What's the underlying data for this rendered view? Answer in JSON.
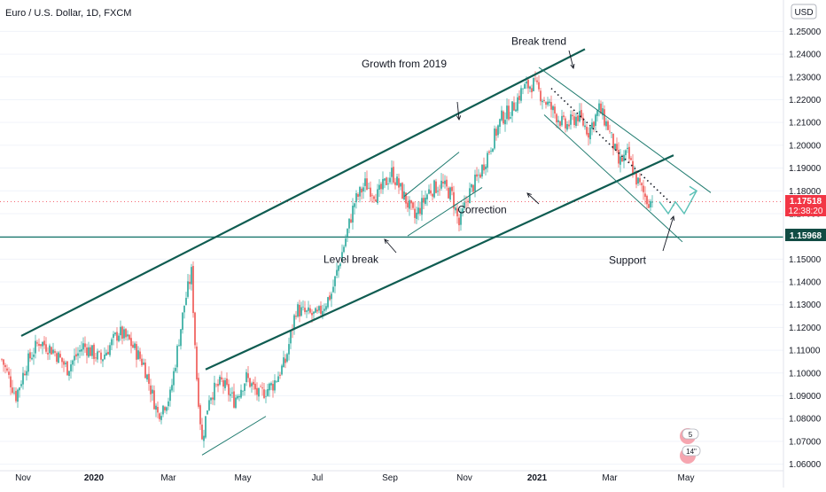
{
  "chart_data": {
    "type": "candlestick",
    "title": "Euro / U.S. Dollar, 1D, FXCM",
    "currency": "USD",
    "ylim": [
      1.0575,
      1.2595
    ],
    "y_ticks": [
      "1.06000",
      "1.07000",
      "1.08000",
      "1.09000",
      "1.10000",
      "1.11000",
      "1.12000",
      "1.13000",
      "1.14000",
      "1.15000",
      "1.16000",
      "1.17000",
      "1.18000",
      "1.19000",
      "1.20000",
      "1.21000",
      "1.22000",
      "1.23000",
      "1.24000",
      "1.25000"
    ],
    "x_ticks": [
      {
        "label": "Nov",
        "bar": 12
      },
      {
        "label": "2020",
        "bar": 52
      },
      {
        "label": "Mar",
        "bar": 94
      },
      {
        "label": "May",
        "bar": 136
      },
      {
        "label": "Jul",
        "bar": 178
      },
      {
        "label": "Sep",
        "bar": 219
      },
      {
        "label": "Nov",
        "bar": 261
      },
      {
        "label": "2021",
        "bar": 302
      },
      {
        "label": "Mar",
        "bar": 343
      },
      {
        "label": "May",
        "bar": 386
      }
    ],
    "anchors": [
      {
        "bar": 0,
        "price": 1.106
      },
      {
        "bar": 5,
        "price": 1.096
      },
      {
        "bar": 8,
        "price": 1.09
      },
      {
        "bar": 14,
        "price": 1.104
      },
      {
        "bar": 21,
        "price": 1.114
      },
      {
        "bar": 29,
        "price": 1.11
      },
      {
        "bar": 37,
        "price": 1.102
      },
      {
        "bar": 46,
        "price": 1.112
      },
      {
        "bar": 56,
        "price": 1.106
      },
      {
        "bar": 66,
        "price": 1.118
      },
      {
        "bar": 72,
        "price": 1.114
      },
      {
        "bar": 80,
        "price": 1.104
      },
      {
        "bar": 88,
        "price": 1.082
      },
      {
        "bar": 95,
        "price": 1.09
      },
      {
        "bar": 103,
        "price": 1.13
      },
      {
        "bar": 107,
        "price": 1.144
      },
      {
        "bar": 110,
        "price": 1.098
      },
      {
        "bar": 113,
        "price": 1.07
      },
      {
        "bar": 117,
        "price": 1.09
      },
      {
        "bar": 124,
        "price": 1.096
      },
      {
        "bar": 131,
        "price": 1.088
      },
      {
        "bar": 138,
        "price": 1.098
      },
      {
        "bar": 145,
        "price": 1.09
      },
      {
        "bar": 153,
        "price": 1.095
      },
      {
        "bar": 160,
        "price": 1.105
      },
      {
        "bar": 166,
        "price": 1.128
      },
      {
        "bar": 172,
        "price": 1.126
      },
      {
        "bar": 178,
        "price": 1.125
      },
      {
        "bar": 186,
        "price": 1.135
      },
      {
        "bar": 193,
        "price": 1.156
      },
      {
        "bar": 199,
        "price": 1.175
      },
      {
        "bar": 205,
        "price": 1.183
      },
      {
        "bar": 212,
        "price": 1.178
      },
      {
        "bar": 220,
        "price": 1.188
      },
      {
        "bar": 226,
        "price": 1.179
      },
      {
        "bar": 233,
        "price": 1.168
      },
      {
        "bar": 241,
        "price": 1.18
      },
      {
        "bar": 248,
        "price": 1.183
      },
      {
        "bar": 254,
        "price": 1.178
      },
      {
        "bar": 258,
        "price": 1.165
      },
      {
        "bar": 263,
        "price": 1.178
      },
      {
        "bar": 270,
        "price": 1.188
      },
      {
        "bar": 276,
        "price": 1.2
      },
      {
        "bar": 282,
        "price": 1.212
      },
      {
        "bar": 288,
        "price": 1.216
      },
      {
        "bar": 294,
        "price": 1.225
      },
      {
        "bar": 300,
        "price": 1.227
      },
      {
        "bar": 306,
        "price": 1.22
      },
      {
        "bar": 312,
        "price": 1.214
      },
      {
        "bar": 318,
        "price": 1.208
      },
      {
        "bar": 325,
        "price": 1.213
      },
      {
        "bar": 331,
        "price": 1.206
      },
      {
        "bar": 337,
        "price": 1.216
      },
      {
        "bar": 342,
        "price": 1.208
      },
      {
        "bar": 348,
        "price": 1.192
      },
      {
        "bar": 353,
        "price": 1.196
      },
      {
        "bar": 358,
        "price": 1.185
      },
      {
        "bar": 364,
        "price": 1.176
      },
      {
        "bar": 367,
        "price": 1.1752
      }
    ],
    "current_price": "1.17518",
    "countdown": "12:38:20",
    "level_price_label": "1.15968",
    "level_price": 1.15968,
    "annotations": [
      {
        "text": "Growth from 2019",
        "bar": 227,
        "price": 1.2342
      },
      {
        "text": "Break trend",
        "bar": 303,
        "price": 1.2442
      },
      {
        "text": "Correction",
        "bar": 271,
        "price": 1.1701
      },
      {
        "text": "Level break",
        "bar": 197,
        "price": 1.1484
      },
      {
        "text": "Support",
        "bar": 353,
        "price": 1.148
      }
    ],
    "trendlines": [
      {
        "name": "upper-channel-line",
        "p1": {
          "bar": 11,
          "price": 1.1163
        },
        "p2": {
          "bar": 329,
          "price": 1.2422
        }
      },
      {
        "name": "lower-channel-line",
        "p1": {
          "bar": 115,
          "price": 1.1016
        },
        "p2": {
          "bar": 379,
          "price": 1.1956
        }
      },
      {
        "name": "wedge-support-line",
        "p1": {
          "bar": 113,
          "price": 1.064
        },
        "p2": {
          "bar": 149,
          "price": 1.081
        }
      },
      {
        "name": "correction-upper-line",
        "p1": {
          "bar": 227,
          "price": 1.1775
        },
        "p2": {
          "bar": 258,
          "price": 1.197
        }
      },
      {
        "name": "correction-lower-line",
        "p1": {
          "bar": 229,
          "price": 1.1602
        },
        "p2": {
          "bar": 271,
          "price": 1.1815
        }
      },
      {
        "name": "descending-channel-upper",
        "p1": {
          "bar": 303,
          "price": 1.2342
        },
        "p2": {
          "bar": 400,
          "price": 1.1792
        }
      },
      {
        "name": "descending-channel-lower",
        "p1": {
          "bar": 306,
          "price": 1.2134
        },
        "p2": {
          "bar": 384,
          "price": 1.1576
        }
      },
      {
        "name": "dotted-trend-line",
        "p1": {
          "bar": 310,
          "price": 1.225
        },
        "p2": {
          "bar": 380,
          "price": 1.1728
        }
      }
    ],
    "projection": [
      {
        "bar": 371,
        "price": 1.1752
      },
      {
        "bar": 376,
        "price": 1.17
      },
      {
        "bar": 380,
        "price": 1.1752
      },
      {
        "bar": 385,
        "price": 1.17
      },
      {
        "bar": 392,
        "price": 1.18
      }
    ],
    "colors": {
      "up": "#26a69a",
      "down": "#ef5350",
      "trendline": "#0f5c51",
      "thin_trendline": "#1e7a6e",
      "projection": "#5bc0b6",
      "level_line": "#1e7a6e",
      "level_label_bg": "#124c44",
      "price_label_bg": "#f23645",
      "axis_text": "#131722"
    },
    "overlay_badges": [
      {
        "text": "5"
      },
      {
        "text": "14\""
      }
    ]
  }
}
